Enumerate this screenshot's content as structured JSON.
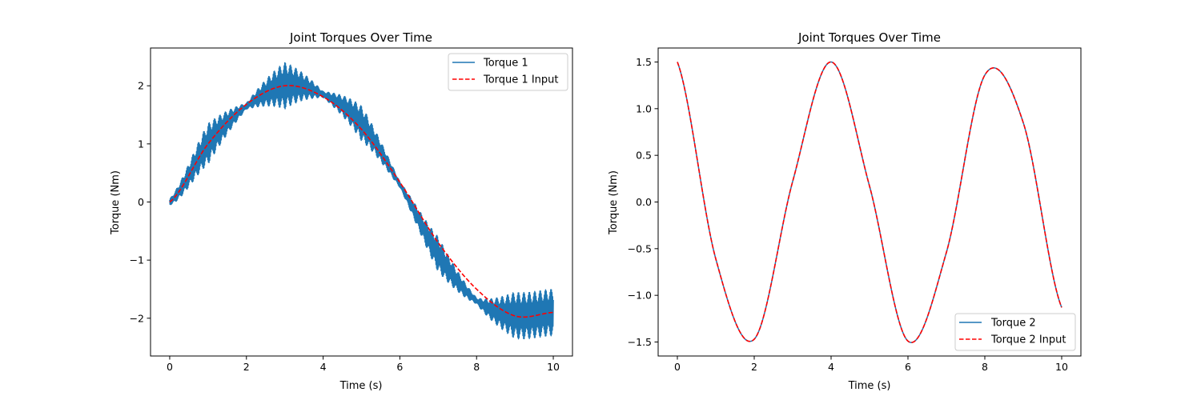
{
  "chart_data": [
    {
      "type": "line",
      "title": "Joint Torques Over Time",
      "xlabel": "Time (s)",
      "ylabel": "Torque (Nm)",
      "xlim": [
        -0.5,
        10.5
      ],
      "ylim": [
        -2.65,
        2.65
      ],
      "xticks": [
        0,
        2,
        4,
        6,
        8,
        10
      ],
      "xtick_labels": [
        "0",
        "2",
        "4",
        "6",
        "8",
        "10"
      ],
      "yticks": [
        -2,
        -1,
        0,
        1,
        2
      ],
      "ytick_labels": [
        "−2",
        "−1",
        "0",
        "1",
        "2"
      ],
      "grid": false,
      "legend_position": "top-right",
      "series": [
        {
          "name": "Torque 1",
          "style": "solid",
          "color": "#1f77b4",
          "x": [
            0,
            1,
            2,
            3,
            4,
            5,
            6,
            7,
            8,
            9,
            10
          ],
          "y": [
            0,
            1.0,
            1.65,
            2.0,
            1.85,
            1.35,
            0.3,
            -0.9,
            -1.7,
            -1.95,
            -1.9
          ],
          "oscillation_amplitude": [
            0.05,
            0.35,
            0.05,
            0.4,
            0.05,
            0.3,
            0.05,
            0.3,
            0.05,
            0.4,
            0.4
          ]
        },
        {
          "name": "Torque 1 Input",
          "style": "dashed",
          "color": "#ff0000",
          "x": [
            0,
            1,
            2,
            3,
            4,
            5,
            6,
            7,
            8,
            9,
            10
          ],
          "y": [
            0,
            1.0,
            1.68,
            2.0,
            1.81,
            1.25,
            0.34,
            -0.7,
            -1.5,
            -1.96,
            -1.9
          ]
        }
      ]
    },
    {
      "type": "line",
      "title": "Joint Torques Over Time",
      "xlabel": "Time (s)",
      "ylabel": "Torque (Nm)",
      "xlim": [
        -0.5,
        10.5
      ],
      "ylim": [
        -1.65,
        1.65
      ],
      "xticks": [
        0,
        2,
        4,
        6,
        8,
        10
      ],
      "xtick_labels": [
        "0",
        "2",
        "4",
        "6",
        "8",
        "10"
      ],
      "yticks": [
        -1.5,
        -1.0,
        -0.5,
        0.0,
        0.5,
        1.0,
        1.5
      ],
      "ytick_labels": [
        "−1.5",
        "−1.0",
        "−0.5",
        "0.0",
        "0.5",
        "1.0",
        "1.5"
      ],
      "grid": false,
      "legend_position": "bottom-right",
      "series": [
        {
          "name": "Torque 2",
          "style": "solid",
          "color": "#1f77b4",
          "x": [
            0,
            1,
            2,
            3,
            4,
            5,
            6,
            7,
            8,
            9,
            10
          ],
          "y": [
            1.5,
            -0.61,
            -1.47,
            0.22,
            1.5,
            0.17,
            -1.49,
            -0.54,
            1.36,
            0.85,
            -1.13
          ]
        },
        {
          "name": "Torque 2 Input",
          "style": "dashed",
          "color": "#ff0000",
          "x": [
            0,
            1,
            2,
            3,
            4,
            5,
            6,
            7,
            8,
            9,
            10
          ],
          "y": [
            1.5,
            -0.61,
            -1.47,
            0.22,
            1.5,
            0.17,
            -1.49,
            -0.54,
            1.36,
            0.85,
            -1.13
          ]
        }
      ]
    }
  ]
}
